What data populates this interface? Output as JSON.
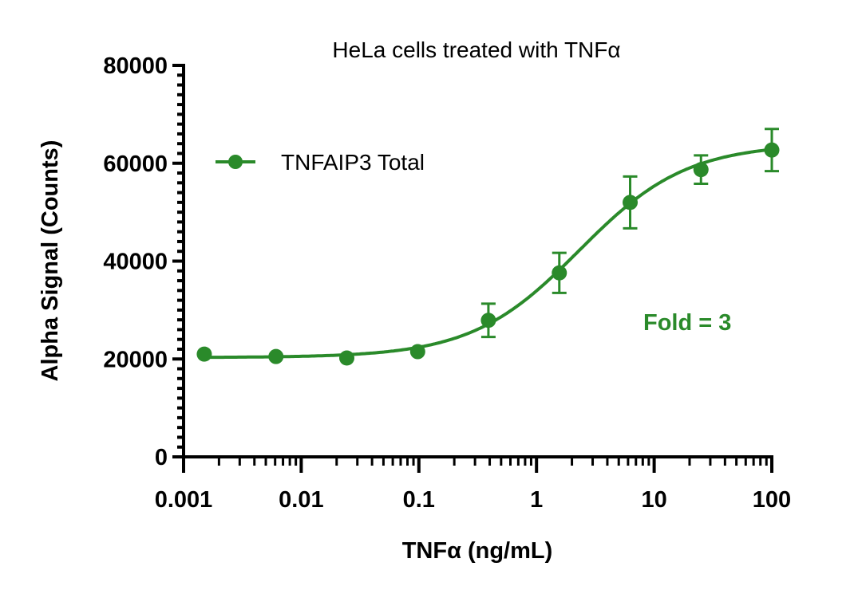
{
  "chart_data": {
    "type": "scatter",
    "title": "HeLa cells treated with TNFα",
    "xlabel": "TNFα (ng/mL)",
    "ylabel": "Alpha Signal (Counts)",
    "xscale": "log",
    "xlim": [
      0.001,
      100
    ],
    "ylim": [
      0,
      80000
    ],
    "x_ticks": [
      "0.001",
      "0.01",
      "0.1",
      "1",
      "10",
      "100"
    ],
    "y_ticks": [
      "0",
      "20000",
      "40000",
      "60000",
      "80000"
    ],
    "grid": false,
    "legend_position": "top-left",
    "color": "#2a8a2a",
    "series": [
      {
        "name": "TNFAIP3 Total",
        "x": [
          0.0015,
          0.0061,
          0.0244,
          0.0977,
          0.39,
          1.5625,
          6.25,
          25,
          100
        ],
        "y": [
          21000,
          20500,
          20200,
          21500,
          27900,
          37600,
          52000,
          58700,
          62700
        ],
        "error": [
          0,
          0,
          0,
          0,
          3400,
          4100,
          5300,
          2900,
          4300
        ],
        "fit": {
          "model": "4PL",
          "bottom": 20300,
          "top": 64000,
          "ec50": 2.3,
          "hill": 0.95
        }
      }
    ],
    "annotations": [
      "Fold = 3"
    ]
  }
}
